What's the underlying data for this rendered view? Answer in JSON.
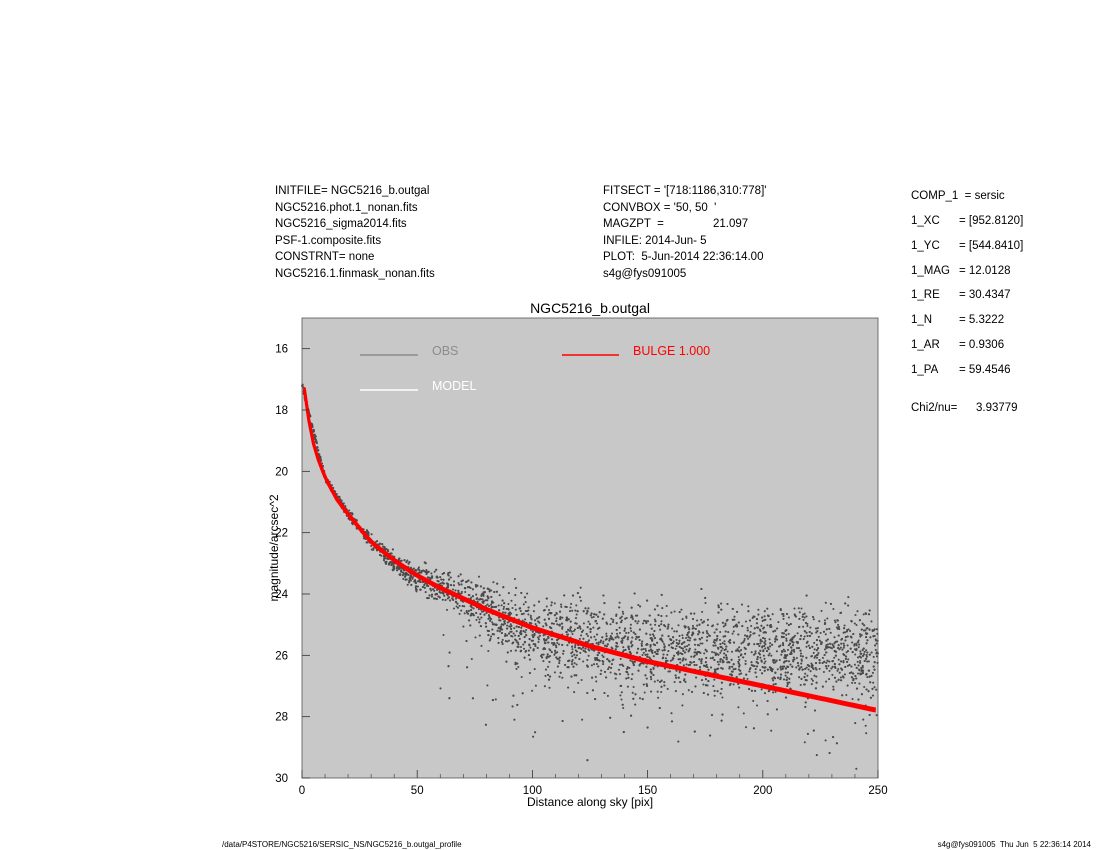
{
  "header_left": [
    "INITFILE= NGC5216_b.outgal",
    "NGC5216.phot.1_nonan.fits",
    "NGC5216_sigma2014.fits",
    "PSF-1.composite.fits",
    "CONSTRNT= none",
    "NGC5216.1.finmask_nonan.fits"
  ],
  "header_mid": {
    "fitsect": "FITSECT = '[718:1186,310:778]'",
    "convbox": "CONVBOX = '50, 50  '",
    "magzpt_label": "MAGZPT  =",
    "magzpt_value": "21.097",
    "infile": "INFILE: 2014-Jun- 5",
    "plot": "PLOT:  5-Jun-2014 22:36:14.00",
    "user": "s4g@fys091005"
  },
  "components": {
    "comp": "COMP_1  = sersic",
    "rows": [
      {
        "label": "1_XC",
        "value": "= [952.8120]"
      },
      {
        "label": "1_YC",
        "value": "= [544.8410]"
      },
      {
        "label": "1_MAG",
        "value": "= 12.0128"
      },
      {
        "label": "1_RE",
        "value": "= 30.4347"
      },
      {
        "label": "1_N",
        "value": "= 5.3222"
      },
      {
        "label": "1_AR",
        "value": "= 0.9306"
      },
      {
        "label": "1_PA",
        "value": "= 59.4546"
      }
    ],
    "chi_label": "Chi2/nu=",
    "chi_value": "3.93779"
  },
  "footer": {
    "path": "/data/P4STORE/NGC5216/SERSIC_NS/NGC5216_b.outgal_profile",
    "stamp": "s4g@fys091005  Thu Jun  5 22:36:14 2014"
  },
  "colors": {
    "plot_bg": "#c8c8c8",
    "obs": "#4a4a4a",
    "obs_legend": "#8c8c8c",
    "model": "#ffffff",
    "bulge": "#ff0000"
  },
  "chart_data": {
    "type": "scatter",
    "title": "NGC5216_b.outgal",
    "xlabel": "Distance along sky [pix]",
    "ylabel": "magnitude/arcsec^2",
    "xlim": [
      0,
      250
    ],
    "ylim": [
      30,
      15
    ],
    "y_inverted": true,
    "xticks": [
      0,
      50,
      100,
      150,
      200,
      250
    ],
    "yticks": [
      16,
      18,
      20,
      22,
      24,
      26,
      28,
      30
    ],
    "grid": false,
    "legend_position": "top-left",
    "legend": [
      {
        "name": "OBS",
        "color": "#8c8c8c"
      },
      {
        "name": "MODEL",
        "color": "#ffffff"
      },
      {
        "name": "BULGE  1.000",
        "color": "#ff0000"
      }
    ],
    "series": [
      {
        "name": "OBS",
        "kind": "points",
        "scatter_profile": {
          "x": [
            0,
            10,
            20,
            30,
            40,
            50,
            60,
            70,
            80,
            90,
            100,
            125,
            150,
            175,
            200,
            225,
            250
          ],
          "median": [
            17.2,
            20.2,
            21.4,
            22.3,
            23.0,
            23.5,
            23.8,
            24.1,
            24.5,
            24.9,
            25.3,
            25.6,
            25.8,
            25.8,
            25.9,
            25.9,
            25.9
          ],
          "spread": [
            0.1,
            0.1,
            0.15,
            0.2,
            0.3,
            0.4,
            0.5,
            0.6,
            0.8,
            1.0,
            1.2,
            1.3,
            1.3,
            1.3,
            1.3,
            1.3,
            1.3
          ]
        }
      },
      {
        "name": "BULGE  1.000",
        "kind": "line",
        "x": [
          1,
          2,
          4,
          6,
          10,
          15,
          20,
          30,
          40,
          50,
          60,
          80,
          100,
          125,
          150,
          175,
          200,
          225,
          250
        ],
        "y": [
          17.3,
          17.9,
          18.8,
          19.4,
          20.2,
          20.9,
          21.4,
          22.3,
          22.9,
          23.4,
          23.8,
          24.5,
          25.1,
          25.7,
          26.2,
          26.6,
          27.0,
          27.4,
          27.8
        ]
      }
    ]
  }
}
